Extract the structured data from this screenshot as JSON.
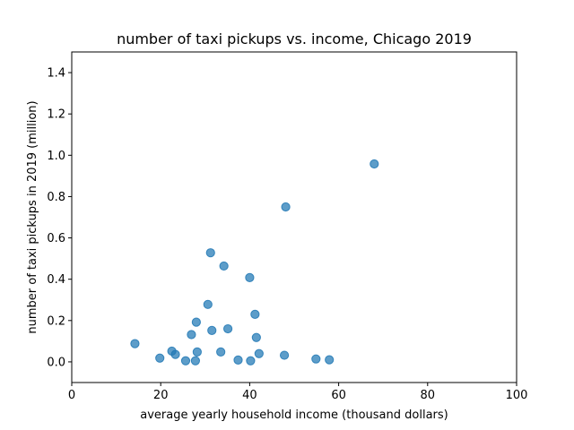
{
  "chart_data": {
    "type": "scatter",
    "title": "number of taxi pickups vs. income, Chicago 2019",
    "xlabel": "average yearly household income (thousand dollars)",
    "ylabel": "number of taxi pickups in 2019 (million)",
    "xlim": [
      0,
      100
    ],
    "ylim": [
      -0.1,
      1.5
    ],
    "xticks": [
      "0",
      "20",
      "40",
      "60",
      "80",
      "100"
    ],
    "yticks": [
      "0.0",
      "0.2",
      "0.4",
      "0.6",
      "0.8",
      "1.0",
      "1.2",
      "1.4"
    ],
    "grid": false,
    "color": "#1f77b4",
    "points": [
      {
        "x": 14.2,
        "y": 0.088
      },
      {
        "x": 19.8,
        "y": 0.018
      },
      {
        "x": 22.5,
        "y": 0.052
      },
      {
        "x": 23.3,
        "y": 0.036
      },
      {
        "x": 25.6,
        "y": 0.005
      },
      {
        "x": 26.9,
        "y": 0.132
      },
      {
        "x": 27.8,
        "y": 0.005
      },
      {
        "x": 28.0,
        "y": 0.192
      },
      {
        "x": 28.2,
        "y": 0.048
      },
      {
        "x": 30.6,
        "y": 0.278
      },
      {
        "x": 31.2,
        "y": 0.528
      },
      {
        "x": 31.5,
        "y": 0.152
      },
      {
        "x": 33.5,
        "y": 0.048
      },
      {
        "x": 34.2,
        "y": 0.464
      },
      {
        "x": 35.1,
        "y": 0.16
      },
      {
        "x": 37.4,
        "y": 0.009
      },
      {
        "x": 40.0,
        "y": 0.408
      },
      {
        "x": 40.2,
        "y": 0.005
      },
      {
        "x": 41.2,
        "y": 0.23
      },
      {
        "x": 41.5,
        "y": 0.118
      },
      {
        "x": 42.1,
        "y": 0.04
      },
      {
        "x": 47.8,
        "y": 0.032
      },
      {
        "x": 48.1,
        "y": 0.75
      },
      {
        "x": 54.9,
        "y": 0.014
      },
      {
        "x": 57.9,
        "y": 0.01
      },
      {
        "x": 68.0,
        "y": 0.958
      }
    ]
  }
}
